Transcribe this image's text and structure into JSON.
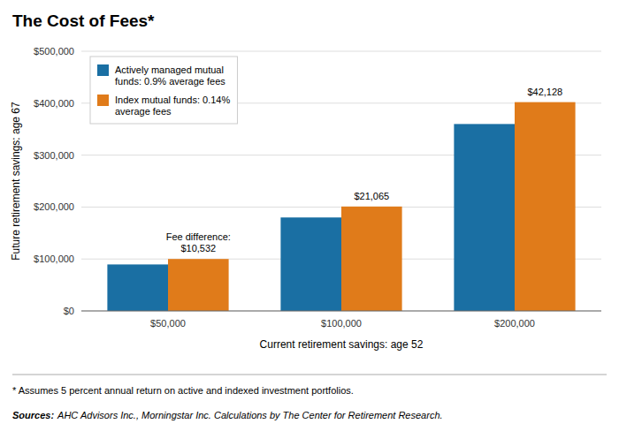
{
  "chart_data": {
    "type": "bar",
    "title": "The Cost of Fees*",
    "x_label": "Current retirement savings: age 52",
    "y_label": "Future retirement savings: age 67",
    "categories": [
      "$50,000",
      "$100,000",
      "$200,000"
    ],
    "series": [
      {
        "name": "Actively managed mutual\nfunds: 0.9% average fees",
        "color": "#1a6fa3",
        "values": [
          89468,
          179936,
          359872
        ]
      },
      {
        "name": "Index mutual funds: 0.14%\naverage fees",
        "color": "#e07b1a",
        "values": [
          100000,
          201001,
          402000
        ]
      }
    ],
    "ylim": [
      0,
      500000
    ],
    "yticks": [
      {
        "value": 0,
        "label": "$0"
      },
      {
        "value": 100000,
        "label": "$100,000"
      },
      {
        "value": 200000,
        "label": "$200,000"
      },
      {
        "value": 300000,
        "label": "$300,000"
      },
      {
        "value": 400000,
        "label": "$400,000"
      },
      {
        "value": 500000,
        "label": "$500,000"
      }
    ],
    "grid": true,
    "legend": "upper left",
    "annotations": [
      "Fee difference:\n$10,532",
      "$21,065",
      "$42,128"
    ],
    "footnote": "* Assumes 5 percent annual return on active and indexed investment portfolios.",
    "source_label": "Sources:",
    "source": "AHC Advisors Inc., Morningstar Inc. Calculations by The Center for Retirement Research."
  }
}
